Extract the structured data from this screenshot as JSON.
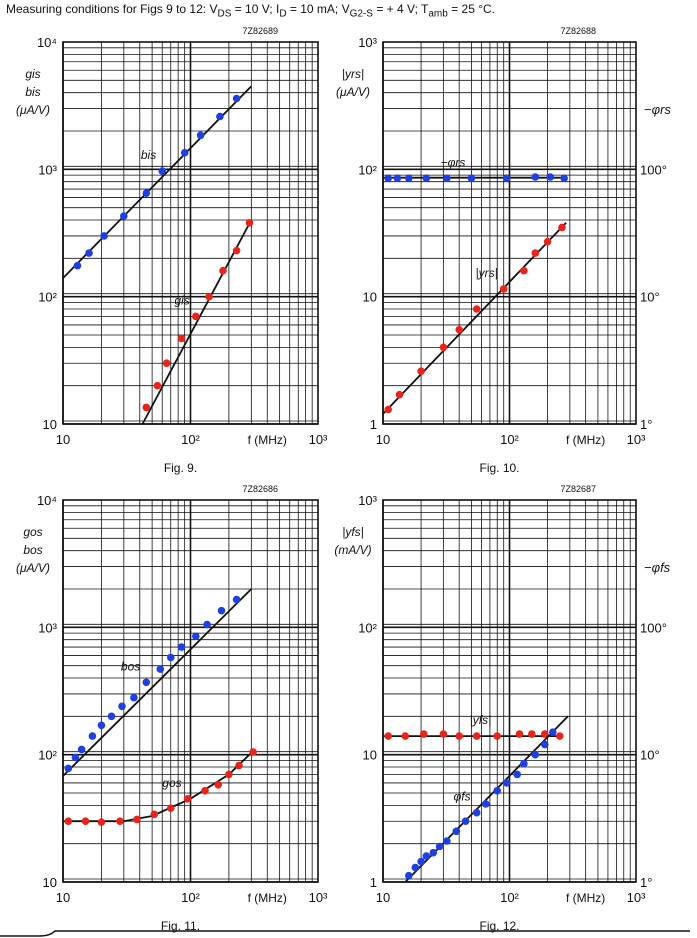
{
  "header": {
    "prefix": "Measuring conditions for Figs 9 to 12:",
    "vds_sym": "V",
    "vds_sub": "DS",
    "vds_val": "= 10 V;",
    "id_sym": "I",
    "id_sub": "D",
    "id_val": "= 10 mA;",
    "vg2_sym": "V",
    "vg2_sub": "G2-S",
    "vg2_val": "= + 4 V;",
    "tamb_sym": "T",
    "tamb_sub": "amb",
    "tamb_val": "= 25 °C."
  },
  "colors": {
    "blue": "#1f3fe0",
    "red": "#e8241c",
    "grid": "#111111"
  },
  "chart_data": [
    {
      "type": "scatter",
      "figure_label": "Fig. 9.",
      "code": "7Z82689",
      "ylabel_lines": [
        "gis",
        "bis",
        "(μA/V)"
      ],
      "xlabel": "f (MHz)",
      "x_scale": "log",
      "y_scale": "log",
      "xlim": [
        10,
        1000
      ],
      "ylim": [
        10,
        10000
      ],
      "x_tick_labels": [
        "10",
        "10²",
        "10³"
      ],
      "y_tick_labels": [
        "10",
        "10²",
        "10³",
        "10⁴"
      ],
      "grid": true,
      "series": [
        {
          "name": "bis",
          "color": "blue",
          "x": [
            13,
            16,
            21,
            30,
            45,
            60,
            90,
            120,
            170,
            230
          ],
          "y": [
            175,
            220,
            300,
            430,
            650,
            970,
            1350,
            1850,
            2600,
            3600
          ],
          "curve_x": [
            10,
            300
          ],
          "curve_y": [
            140,
            4500
          ]
        },
        {
          "name": "gis",
          "color": "red",
          "x": [
            45,
            55,
            65,
            85,
            110,
            140,
            180,
            230,
            290
          ],
          "y": [
            13.5,
            20,
            30,
            47,
            70,
            100,
            160,
            230,
            380
          ],
          "curve_x": [
            42,
            300
          ],
          "curve_y": [
            10,
            400
          ]
        }
      ]
    },
    {
      "type": "scatter",
      "figure_label": "Fig. 10.",
      "code": "7Z82688",
      "ylabel_lines": [
        "|yrs|",
        "(μA/V)"
      ],
      "ylabel_right": "−φrs",
      "xlabel": "f (MHz)",
      "x_scale": "log",
      "y_scale": "log",
      "xlim": [
        10,
        1000
      ],
      "ylim": [
        1,
        1000
      ],
      "x_tick_labels": [
        "10",
        "10²",
        "10³"
      ],
      "y_tick_labels": [
        "1",
        "10",
        "10²",
        "10³"
      ],
      "y_right_tick_labels": [
        "1°",
        "10°",
        "100°"
      ],
      "grid": true,
      "series": [
        {
          "name": "−φrs",
          "color": "blue",
          "x": [
            11,
            13,
            16,
            22,
            32,
            50,
            95,
            160,
            210,
            270
          ],
          "y": [
            85,
            85,
            85,
            85,
            85,
            85,
            85,
            87,
            87,
            85
          ],
          "curve_x": [
            10,
            280
          ],
          "curve_y": [
            86,
            86
          ]
        },
        {
          "name": "|yrs|",
          "color": "red",
          "x": [
            11,
            13.5,
            20,
            30,
            40,
            55,
            90,
            130,
            160,
            200,
            260
          ],
          "y": [
            1.3,
            1.7,
            2.6,
            4.0,
            5.5,
            8.0,
            11.5,
            16,
            22,
            27,
            35
          ],
          "curve_x": [
            10,
            280
          ],
          "curve_y": [
            1.2,
            38
          ]
        }
      ]
    },
    {
      "type": "scatter",
      "figure_label": "Fig. 11.",
      "code": "7Z82686",
      "ylabel_lines": [
        "gos",
        "bos",
        "(μA/V)"
      ],
      "xlabel": "f (MHz)",
      "x_scale": "log",
      "y_scale": "log",
      "xlim": [
        10,
        1000
      ],
      "ylim": [
        10,
        10000
      ],
      "x_tick_labels": [
        "10",
        "10²",
        "10³"
      ],
      "y_tick_labels": [
        "10",
        "10²",
        "10³",
        "10⁴"
      ],
      "grid": true,
      "series": [
        {
          "name": "bos",
          "color": "blue",
          "x": [
            11,
            12.5,
            14,
            17,
            20,
            24,
            29,
            36,
            45,
            58,
            70,
            85,
            110,
            135,
            175,
            230
          ],
          "y": [
            78,
            95,
            110,
            140,
            170,
            200,
            240,
            280,
            370,
            470,
            580,
            700,
            850,
            1050,
            1350,
            1650
          ],
          "curve_x": [
            10,
            300
          ],
          "curve_y": [
            68,
            2000
          ]
        },
        {
          "name": "gos",
          "color": "red",
          "x": [
            11,
            15,
            20,
            28,
            38,
            52,
            70,
            95,
            130,
            165,
            200,
            240,
            310
          ],
          "y": [
            30,
            30,
            29.5,
            30,
            31,
            34,
            38,
            45,
            52,
            58,
            70,
            82,
            105
          ],
          "curve_x": [
            10,
            30,
            50,
            100,
            200,
            320
          ],
          "curve_y": [
            30,
            30,
            33,
            45,
            70,
            110
          ]
        }
      ]
    },
    {
      "type": "scatter",
      "figure_label": "Fig. 12.",
      "code": "7Z82687",
      "ylabel_lines": [
        "|yfs|",
        "(mA/V)"
      ],
      "ylabel_right": "−φfs",
      "xlabel": "f (MHz)",
      "x_scale": "log",
      "y_scale": "log",
      "xlim": [
        10,
        1000
      ],
      "ylim": [
        1,
        1000
      ],
      "x_tick_labels": [
        "10",
        "10²",
        "10³"
      ],
      "y_tick_labels": [
        "1",
        "10",
        "10²",
        "10³"
      ],
      "y_right_tick_labels": [
        "1°",
        "10°",
        "100°"
      ],
      "grid": true,
      "series": [
        {
          "name": "|yfs|",
          "color": "red",
          "x": [
            11,
            15,
            21,
            30,
            40,
            55,
            80,
            120,
            150,
            190,
            250
          ],
          "y": [
            14,
            14,
            14.5,
            14.5,
            14,
            14,
            14,
            14.5,
            14.5,
            14.5,
            14
          ],
          "curve_x": [
            10,
            260
          ],
          "curve_y": [
            14,
            14
          ]
        },
        {
          "name": "φfs",
          "color": "blue",
          "x": [
            16,
            18,
            20,
            22,
            25,
            28,
            32,
            38,
            45,
            55,
            65,
            80,
            95,
            115,
            130,
            160,
            190,
            220
          ],
          "y": [
            1.12,
            1.3,
            1.45,
            1.6,
            1.7,
            1.9,
            2.1,
            2.5,
            3.0,
            3.5,
            4.1,
            5.2,
            6.0,
            7.0,
            8.5,
            10,
            12,
            15
          ],
          "curve_x": [
            15,
            290
          ],
          "curve_y": [
            1.0,
            20
          ]
        }
      ]
    }
  ]
}
